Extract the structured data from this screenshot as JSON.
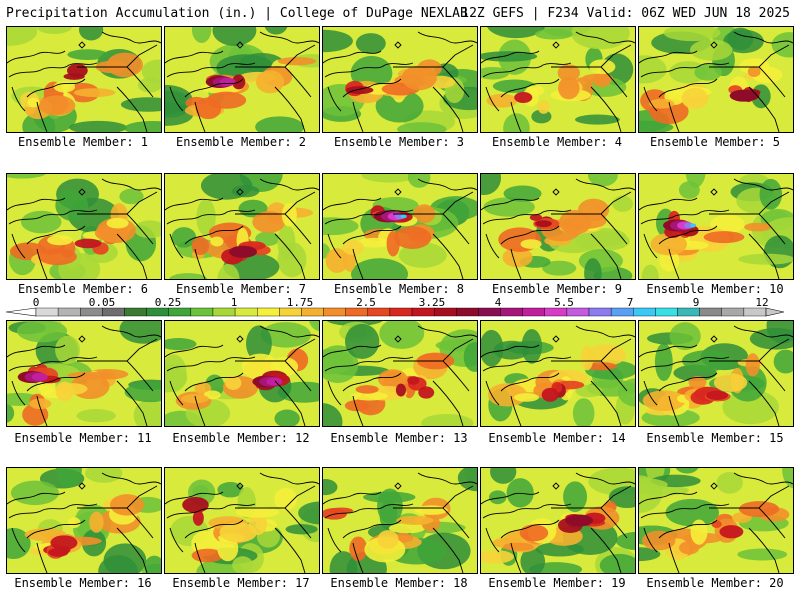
{
  "header": {
    "left": "Precipitation Accumulation (in.) | College of DuPage NEXLAB",
    "right": "12Z GEFS | F234 Valid: 06Z WED JUN 18 2025"
  },
  "panels": [
    {
      "label": "Ensemble Member: 1",
      "max": "2.5"
    },
    {
      "label": "Ensemble Member: 2",
      "max": "5.5"
    },
    {
      "label": "Ensemble Member: 3",
      "max": "2.5"
    },
    {
      "label": "Ensemble Member: 4",
      "max": "1.75"
    },
    {
      "label": "Ensemble Member: 5",
      "max": "4"
    },
    {
      "label": "Ensemble Member: 6",
      "max": "2.5"
    },
    {
      "label": "Ensemble Member: 7",
      "max": "4"
    },
    {
      "label": "Ensemble Member: 8",
      "max": "7"
    },
    {
      "label": "Ensemble Member: 9",
      "max": "3.25"
    },
    {
      "label": "Ensemble Member: 10",
      "max": "7"
    },
    {
      "label": "Ensemble Member: 11",
      "max": "5.5"
    },
    {
      "label": "Ensemble Member: 12",
      "max": "5.5"
    },
    {
      "label": "Ensemble Member: 13",
      "max": "3.25"
    },
    {
      "label": "Ensemble Member: 14",
      "max": "3.25"
    },
    {
      "label": "Ensemble Member: 15",
      "max": "3.25"
    },
    {
      "label": "Ensemble Member: 16",
      "max": "3.25"
    },
    {
      "label": "Ensemble Member: 17",
      "max": "2.5"
    },
    {
      "label": "Ensemble Member: 18",
      "max": "2.5"
    },
    {
      "label": "Ensemble Member: 19",
      "max": "4"
    },
    {
      "label": "Ensemble Member: 20",
      "max": "2.5"
    }
  ],
  "colorbar": {
    "tick_labels": [
      "0",
      "0.05",
      "0.25",
      "1",
      "1.75",
      "2.5",
      "3.25",
      "4",
      "5.5",
      "7",
      "9",
      "12"
    ],
    "colors": [
      "#d9d9d9",
      "#b3b3b3",
      "#8c8c8c",
      "#6e6e6e",
      "#3a7a32",
      "#2f8f3a",
      "#3fa63a",
      "#6cc23a",
      "#a8d838",
      "#d8ea3c",
      "#f5f03a",
      "#f7d33a",
      "#f6b02f",
      "#f28f2a",
      "#ee6a25",
      "#e64822",
      "#d9281f",
      "#c4161f",
      "#a80f1e",
      "#8e0c2a",
      "#8a0f50",
      "#a8157a",
      "#c21f9e",
      "#d83cc6",
      "#c25be0",
      "#8c7cf0",
      "#5aa0f5",
      "#3cc8f5",
      "#38e0e6",
      "#3ab8b8",
      "#8a8a8a",
      "#a8a8a8",
      "#c8c8c8"
    ]
  }
}
